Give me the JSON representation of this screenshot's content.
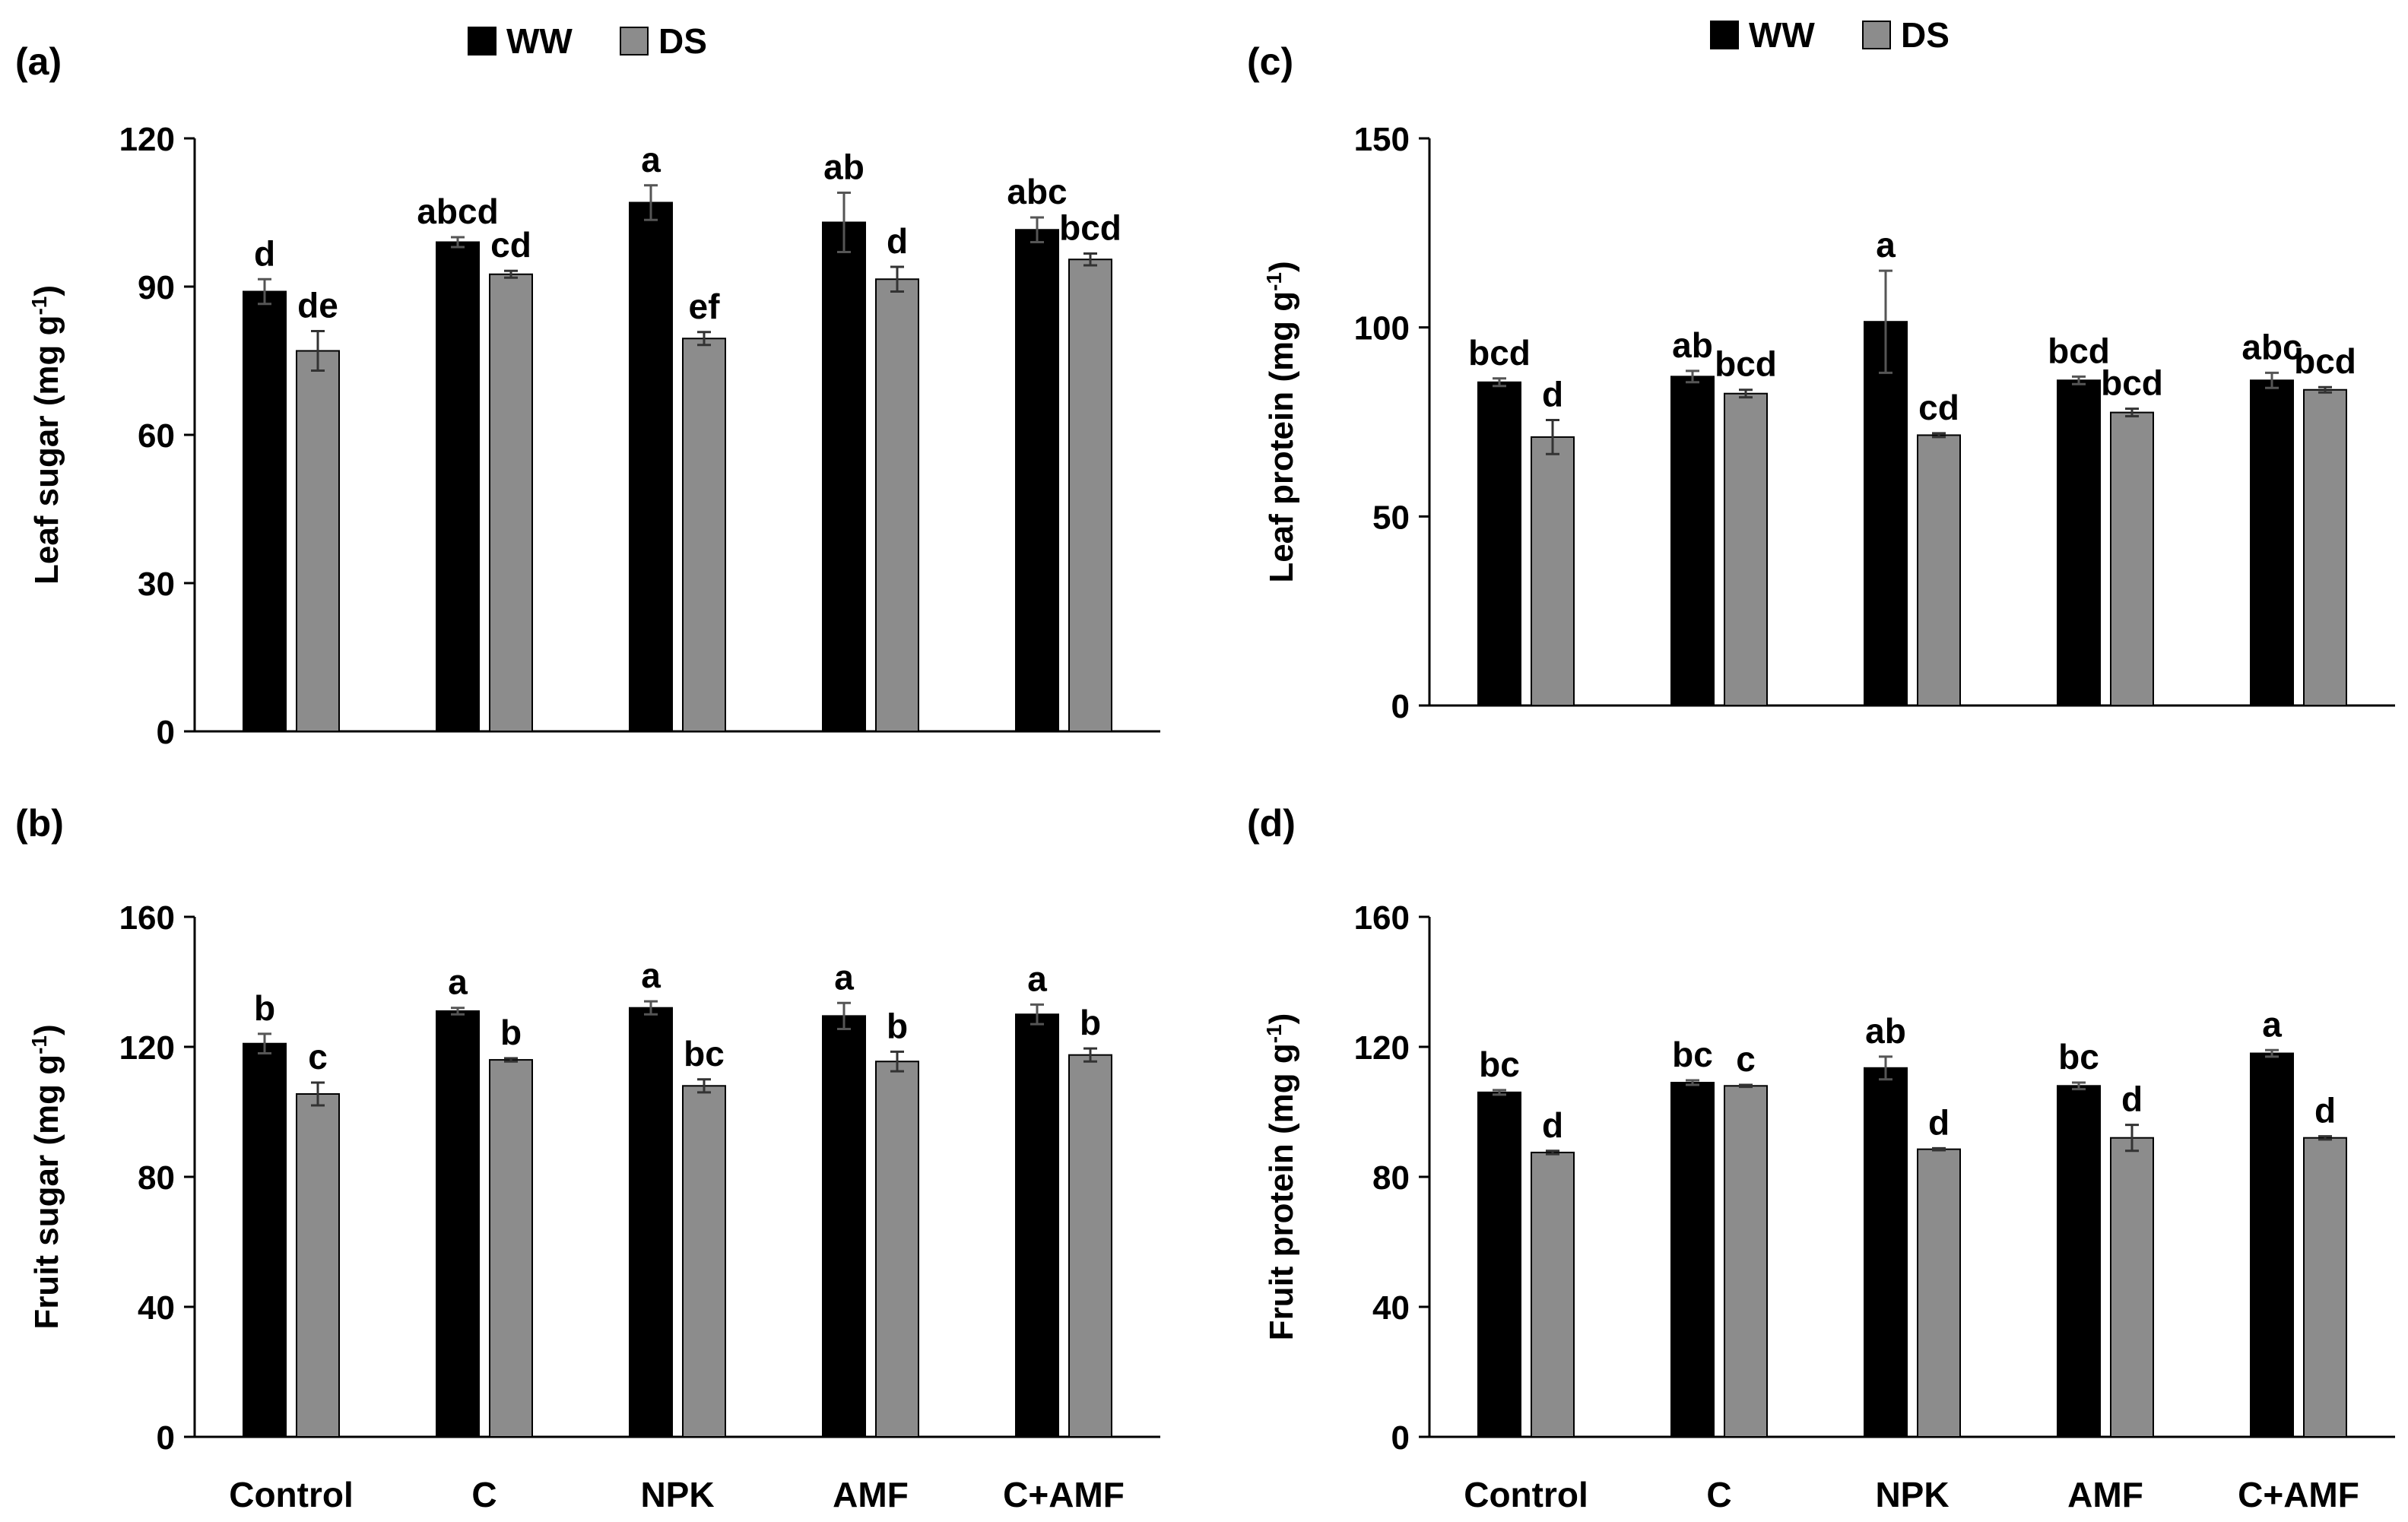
{
  "colors": {
    "ww": "#000000",
    "ds": "#8c8c8c",
    "axis": "#000000"
  },
  "legend": [
    "WW",
    "DS"
  ],
  "chart_data": [
    {
      "panel": "(a)",
      "type": "bar",
      "ylabel": "Leaf sugar (mg g",
      "ylabel_sup": "-1",
      "ylabel_tail": ")",
      "ylim": [
        0,
        120
      ],
      "yticks": [
        0,
        30,
        60,
        90,
        120
      ],
      "categories": [
        "Control",
        "C",
        "NPK",
        "AMF",
        "C+AMF"
      ],
      "show_xlabels": false,
      "series": [
        {
          "name": "WW",
          "values": [
            89,
            99,
            107,
            103,
            101.5
          ],
          "errors": [
            2.5,
            1,
            3.5,
            6,
            2.5
          ],
          "letters": [
            "d",
            "abcd",
            "a",
            "ab",
            "abc"
          ]
        },
        {
          "name": "DS",
          "values": [
            77,
            92.5,
            79.5,
            91.5,
            95.5
          ],
          "errors": [
            4,
            0.7,
            1.3,
            2.5,
            1.2
          ],
          "letters": [
            "de",
            "cd",
            "ef",
            "d",
            "bcd"
          ]
        }
      ]
    },
    {
      "panel": "(b)",
      "type": "bar",
      "ylabel": "Fruit sugar (mg g",
      "ylabel_sup": "-1",
      "ylabel_tail": ")",
      "ylim": [
        0,
        160
      ],
      "yticks": [
        0,
        40,
        80,
        120,
        160
      ],
      "categories": [
        "Control",
        "C",
        "NPK",
        "AMF",
        "C+AMF"
      ],
      "show_xlabels": true,
      "series": [
        {
          "name": "WW",
          "values": [
            121,
            131,
            132,
            129.5,
            130
          ],
          "errors": [
            3,
            1,
            2,
            4,
            3
          ],
          "letters": [
            "b",
            "a",
            "a",
            "a",
            "a"
          ]
        },
        {
          "name": "DS",
          "values": [
            105.5,
            116,
            108,
            115.5,
            117.5
          ],
          "errors": [
            3.5,
            0.5,
            2,
            3,
            2
          ],
          "letters": [
            "c",
            "b",
            "bc",
            "b",
            "b"
          ]
        }
      ]
    },
    {
      "panel": "(c)",
      "type": "bar",
      "ylabel": "Leaf protein (mg g",
      "ylabel_sup": "-1",
      "ylabel_tail": ")",
      "ylim": [
        0,
        150
      ],
      "yticks": [
        0,
        50,
        100,
        150
      ],
      "categories": [
        "Control",
        "C",
        "NPK",
        "AMF",
        "C+AMF"
      ],
      "show_xlabels": false,
      "series": [
        {
          "name": "WW",
          "values": [
            85.5,
            87,
            101.5,
            86,
            86
          ],
          "errors": [
            1,
            1.5,
            13.5,
            1,
            2
          ],
          "letters": [
            "bcd",
            "ab",
            "a",
            "bcd",
            "abc"
          ]
        },
        {
          "name": "DS",
          "values": [
            71,
            82.5,
            71.5,
            77.5,
            83.5
          ],
          "errors": [
            4.5,
            1,
            0.5,
            1,
            0.7
          ],
          "letters": [
            "d",
            "bcd",
            "cd",
            "bcd",
            "bcd"
          ]
        }
      ]
    },
    {
      "panel": "(d)",
      "type": "bar",
      "ylabel": "Fruit protein (mg g",
      "ylabel_sup": "-1",
      "ylabel_tail": ")",
      "ylim": [
        0,
        160
      ],
      "yticks": [
        0,
        40,
        80,
        120,
        160
      ],
      "categories": [
        "Control",
        "C",
        "NPK",
        "AMF",
        "C+AMF"
      ],
      "show_xlabels": true,
      "series": [
        {
          "name": "WW",
          "values": [
            106,
            109,
            113.5,
            108,
            118
          ],
          "errors": [
            0.7,
            0.7,
            3.5,
            1,
            1
          ],
          "letters": [
            "bc",
            "bc",
            "ab",
            "bc",
            "a"
          ]
        },
        {
          "name": "DS",
          "values": [
            87.5,
            108,
            88.5,
            92,
            92
          ],
          "errors": [
            0.5,
            0.3,
            0.3,
            4,
            0.5
          ],
          "letters": [
            "d",
            "c",
            "d",
            "d",
            "d"
          ]
        }
      ]
    }
  ]
}
